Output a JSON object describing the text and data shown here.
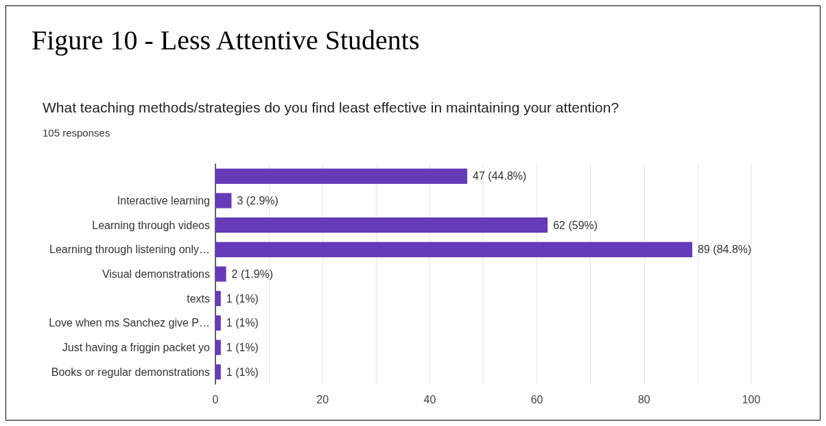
{
  "chart_data": {
    "type": "bar",
    "orientation": "horizontal",
    "title": "Figure 10 - Less Attentive Students",
    "subtitle": "What teaching methods/strategies do you find least effective in maintaining your attention?",
    "annotations": [
      "105 responses"
    ],
    "categories": [
      null,
      "Interactive learning",
      "Learning through videos",
      "Learning through listening only…",
      "Visual demonstrations",
      "texts",
      "Love when ms Sanchez give P…",
      "Just having a friggin packet yo",
      "Books or regular demonstrations"
    ],
    "values": [
      47,
      3,
      62,
      89,
      2,
      1,
      1,
      1,
      1
    ],
    "value_labels": [
      "47 (44.8%)",
      "3 (2.9%)",
      "62 (59%)",
      "89 (84.8%)",
      "2 (1.9%)",
      "1 (1%)",
      "1 (1%)",
      "1 (1%)",
      "1 (1%)"
    ],
    "color": "#673ab7",
    "xlim": [
      0,
      100
    ],
    "xticks": [
      0,
      {
        "value": 10,
        "label": null
      },
      20,
      {
        "value": 30,
        "label": null
      },
      40,
      {
        "value": 50,
        "label": null
      },
      60,
      {
        "value": 70,
        "label": null
      },
      80,
      {
        "value": 90,
        "label": null
      },
      100
    ],
    "grid": true
  }
}
